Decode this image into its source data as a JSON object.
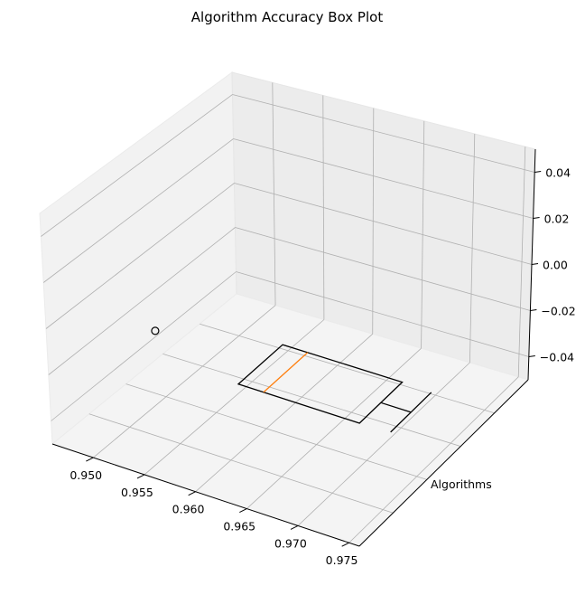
{
  "chart_data": {
    "type": "box",
    "projection": "3d",
    "title": "Algorithm Accuracy Box Plot",
    "xlabel": "",
    "ylabel": "Algorithms",
    "zlabel": "",
    "x_ticks": [
      "0.950",
      "0.955",
      "0.960",
      "0.965",
      "0.970",
      "0.975"
    ],
    "z_ticks": [
      "0.04",
      "0.02",
      "0.00",
      "−0.02",
      "−0.04"
    ],
    "xlim": [
      0.946,
      0.976
    ],
    "zlim": [
      -0.05,
      0.05
    ],
    "box": {
      "q1": 0.9595,
      "median": 0.962,
      "q3": 0.9715,
      "whisker_low": 0.9595,
      "whisker_high": 0.9745,
      "outliers": [
        0.949
      ]
    },
    "colors": {
      "box": "#000000",
      "median": "#ff7f0e",
      "pane": "#f2f2f2",
      "grid": "#b0b0b0"
    }
  }
}
